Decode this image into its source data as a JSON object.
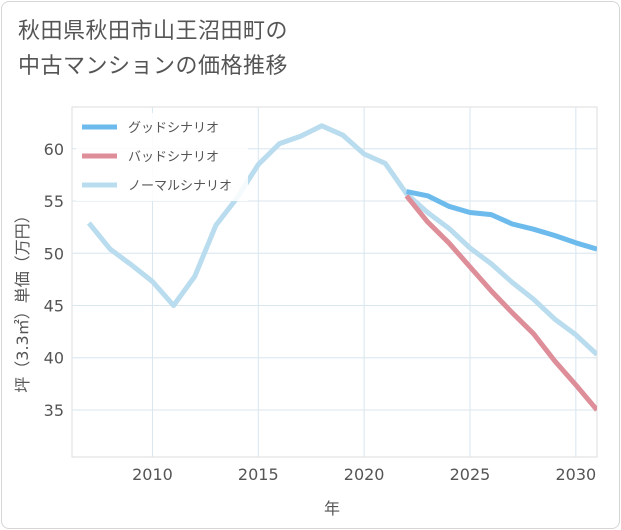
{
  "chart_data": {
    "type": "line",
    "title": [
      "秋田県秋田市山王沼田町の",
      "中古マンションの価格推移"
    ],
    "xlabel": "年",
    "ylabel": "坪（3.3㎡）単価（万円）",
    "xlim": [
      2006.2,
      2031
    ],
    "ylim": [
      30.5,
      64
    ],
    "xticks": [
      2010,
      2015,
      2020,
      2025,
      2030
    ],
    "yticks": [
      35,
      40,
      45,
      50,
      55,
      60
    ],
    "grid": true,
    "legend_position": "top-left",
    "series": [
      {
        "name": "グッドシナリオ",
        "color": "#6cbbec",
        "x": [
          2022,
          2023,
          2024,
          2025,
          2026,
          2027,
          2028,
          2029,
          2030,
          2031
        ],
        "y": [
          55.9,
          55.5,
          54.5,
          53.9,
          53.7,
          52.8,
          52.3,
          51.7,
          51.0,
          50.4
        ]
      },
      {
        "name": "バッドシナリオ",
        "color": "#dd8e98",
        "x": [
          2022,
          2023,
          2024,
          2025,
          2026,
          2027,
          2028,
          2029,
          2030,
          2031
        ],
        "y": [
          55.5,
          53.0,
          51.0,
          48.7,
          46.4,
          44.3,
          42.3,
          39.7,
          37.4,
          35.0
        ]
      },
      {
        "name": "ノーマルシナリオ",
        "color": "#b9dcee",
        "x": [
          2007,
          2008,
          2009,
          2010,
          2011,
          2012,
          2013,
          2014,
          2015,
          2016,
          2017,
          2018,
          2019,
          2020,
          2021,
          2022,
          2023,
          2024,
          2025,
          2026,
          2027,
          2028,
          2029,
          2030,
          2031
        ],
        "y": [
          52.9,
          50.4,
          48.9,
          47.3,
          45.0,
          47.8,
          52.7,
          55.3,
          58.5,
          60.5,
          61.2,
          62.2,
          61.3,
          59.5,
          58.6,
          55.7,
          53.9,
          52.4,
          50.5,
          49.0,
          47.2,
          45.6,
          43.7,
          42.2,
          40.3
        ]
      }
    ]
  }
}
